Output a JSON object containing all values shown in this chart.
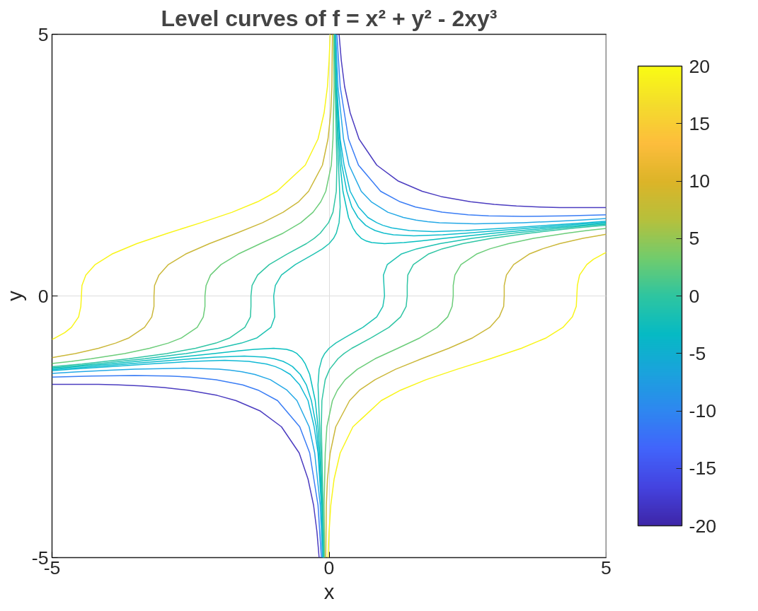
{
  "chart_data": {
    "type": "line",
    "title": "Level curves of f = x² + y² - 2xy³",
    "xlabel": "x",
    "ylabel": "y",
    "xlim": [
      -5,
      5
    ],
    "ylim": [
      -5,
      5
    ],
    "xticks": [
      -5,
      0,
      5
    ],
    "yticks": [
      -5,
      0,
      5
    ],
    "grid": true,
    "marker": "none",
    "line_style": "solid",
    "clim": [
      -20,
      20
    ],
    "cticks": [
      -20,
      -15,
      -10,
      -5,
      0,
      5,
      10,
      15,
      20
    ],
    "series": [
      {
        "color": "#4b3cc0",
        "x": [
          5,
          4.79,
          4.16,
          3.8,
          3.38,
          2.98,
          2.55,
          2.02,
          1.68,
          1.24,
          0.86,
          0.54,
          0.38,
          0.28,
          0.22,
          0.18
        ],
        "values": [
          1.69,
          1.69,
          1.69,
          1.7,
          1.72,
          1.75,
          1.8,
          1.9,
          2,
          2.2,
          2.5,
          3,
          3.5,
          4,
          4.5,
          5
        ]
      },
      {
        "color": "#4b3cc0",
        "x": [
          -5,
          -4.79,
          -4.16,
          -3.8,
          -3.38,
          -2.98,
          -2.55,
          -2.02,
          -1.68,
          -1.24,
          -0.86,
          -0.54,
          -0.38,
          -0.28,
          -0.22,
          -0.18
        ],
        "values": [
          -1.69,
          -1.69,
          -1.69,
          -1.7,
          -1.72,
          -1.75,
          -1.8,
          -1.9,
          -2,
          -2.2,
          -2.5,
          -3,
          -3.5,
          -4,
          -4.5,
          -5
        ]
      },
      {
        "color": "#3a7df5",
        "x": [
          5,
          4.28,
          3.51,
          2.88,
          2.51,
          2.04,
          1.56,
          1.28,
          0.93,
          0.53,
          0.35,
          0.2,
          0.14
        ],
        "values": [
          1.55,
          1.53,
          1.52,
          1.53,
          1.55,
          1.6,
          1.7,
          1.8,
          2,
          2.5,
          3,
          4,
          5
        ]
      },
      {
        "color": "#3a7df5",
        "x": [
          -5,
          -4.28,
          -3.51,
          -2.88,
          -2.51,
          -2.04,
          -1.56,
          -1.28,
          -0.93,
          -0.53,
          -0.35,
          -0.2,
          -0.14
        ],
        "values": [
          -1.55,
          -1.53,
          -1.52,
          -1.53,
          -1.55,
          -1.6,
          -1.7,
          -1.8,
          -2,
          -2.5,
          -3,
          -4,
          -5
        ]
      },
      {
        "color": "#25a9e6",
        "x": [
          5,
          4.53,
          3.95,
          3.5,
          2.63,
          1.99,
          1.78,
          1.57,
          1.34,
          1.06,
          0.76,
          0.58,
          0.36,
          0.26,
          0.16,
          0.12
        ],
        "values": [
          1.48,
          1.45,
          1.42,
          1.4,
          1.38,
          1.4,
          1.42,
          1.45,
          1.5,
          1.6,
          1.8,
          2,
          2.5,
          3,
          4,
          5
        ]
      },
      {
        "color": "#25a9e6",
        "x": [
          -5,
          -4.53,
          -3.95,
          -3.5,
          -2.63,
          -1.99,
          -1.78,
          -1.57,
          -1.34,
          -1.06,
          -0.76,
          -0.58,
          -0.36,
          -0.26,
          -0.16,
          -0.12
        ],
        "values": [
          -1.48,
          -1.45,
          -1.42,
          -1.4,
          -1.38,
          -1.4,
          -1.42,
          -1.45,
          -1.5,
          -1.6,
          -1.8,
          -2,
          -2.5,
          -3,
          -4,
          -5
        ]
      },
      {
        "color": "#12b9d5",
        "x": [
          5,
          4.63,
          3.95,
          3.26,
          2.46,
          1.88,
          1.45,
          1.13,
          0.97,
          0.86,
          0.7,
          0.53,
          0.38,
          0.27,
          0.2,
          0.14,
          0.11
        ],
        "values": [
          1.43,
          1.4,
          1.35,
          1.3,
          1.25,
          1.23,
          1.25,
          1.3,
          1.35,
          1.4,
          1.5,
          1.7,
          2,
          2.5,
          3,
          4,
          5
        ]
      },
      {
        "color": "#12b9d5",
        "x": [
          -5,
          -4.63,
          -3.95,
          -3.26,
          -2.46,
          -1.88,
          -1.45,
          -1.13,
          -0.97,
          -0.86,
          -0.7,
          -0.53,
          -0.38,
          -0.27,
          -0.2,
          -0.14,
          -0.11
        ],
        "values": [
          -1.43,
          -1.4,
          -1.35,
          -1.3,
          -1.25,
          -1.23,
          -1.25,
          -1.3,
          -1.35,
          -1.4,
          -1.5,
          -1.7,
          -2,
          -2.5,
          -3,
          -4,
          -5
        ]
      },
      {
        "color": "#0fbccc",
        "x": [
          5,
          4.26,
          3.66,
          3.07,
          2.47,
          2.05,
          1.53,
          1.16,
          0.99,
          0.83,
          0.74,
          0.66,
          0.52,
          0.41,
          0.32,
          0.23,
          0.19,
          0.13,
          0.1
        ],
        "values": [
          1.41,
          1.35,
          1.3,
          1.25,
          1.2,
          1.17,
          1.15,
          1.17,
          1.2,
          1.25,
          1.3,
          1.35,
          1.5,
          1.7,
          2,
          2.5,
          3,
          4,
          5
        ]
      },
      {
        "color": "#0fbccc",
        "x": [
          -5,
          -4.26,
          -3.66,
          -3.07,
          -2.47,
          -2.05,
          -1.53,
          -1.16,
          -0.99,
          -0.83,
          -0.74,
          -0.66,
          -0.52,
          -0.41,
          -0.32,
          -0.23,
          -0.19,
          -0.13,
          -0.1
        ],
        "values": [
          -1.41,
          -1.35,
          -1.3,
          -1.25,
          -1.2,
          -1.17,
          -1.15,
          -1.17,
          -1.2,
          -1.25,
          -1.3,
          -1.35,
          -1.5,
          -1.7,
          -2,
          -2.5,
          -3,
          -4,
          -5
        ]
      },
      {
        "color": "#08bfc0",
        "x": [
          5,
          3.97,
          2.97,
          2.08,
          1.65,
          1.35,
          1,
          0.77,
          0.67,
          0.58,
          0.49,
          0.43,
          0.35,
          0.25,
          0.2,
          0.17,
          0.13,
          0.1
        ],
        "values": [
          1.39,
          1.3,
          1.2,
          1.1,
          1.05,
          1.02,
          1,
          1.02,
          1.05,
          1.1,
          1.2,
          1.3,
          1.5,
          2,
          2.5,
          3,
          4,
          5
        ]
      },
      {
        "color": "#08bfc0",
        "x": [
          -5,
          -3.97,
          -2.97,
          -2.08,
          -1.65,
          -1.35,
          -1,
          -0.77,
          -0.67,
          -0.58,
          -0.49,
          -0.43,
          -0.35,
          -0.25,
          -0.2,
          -0.17,
          -0.13,
          -0.1
        ],
        "values": [
          -1.39,
          -1.3,
          -1.2,
          -1.1,
          -1.05,
          -1.02,
          -1,
          -1.02,
          -1.05,
          -1.1,
          -1.2,
          -1.3,
          -1.5,
          -2,
          -2.5,
          -3,
          -4,
          -5
        ]
      },
      {
        "color": "#1fc2b2",
        "x": [
          -5,
          -4.75,
          -4.23,
          -3.32,
          -2.58,
          -2,
          -1.58,
          -1.3,
          -1.05,
          -0.98,
          -0.99,
          -1,
          -0.97,
          -0.86,
          -0.61,
          -0.28,
          -0.12,
          0,
          0.08,
          0.13,
          0.18,
          0.2,
          0.19,
          0.17,
          0.15,
          0.12,
          0.1
        ],
        "values": [
          -1.37,
          -1.35,
          -1.3,
          -1.2,
          -1.1,
          -1,
          -0.9,
          -0.8,
          -0.6,
          -0.4,
          -0.2,
          0,
          0.2,
          0.4,
          0.6,
          0.8,
          0.9,
          1,
          1.1,
          1.2,
          1.4,
          1.7,
          2,
          2.5,
          3,
          4,
          5
        ]
      },
      {
        "color": "#1fc2b2",
        "x": [
          5,
          4.75,
          4.23,
          3.32,
          2.58,
          2,
          1.58,
          1.3,
          1.05,
          0.98,
          0.99,
          1,
          0.97,
          0.86,
          0.61,
          0.28,
          0.12,
          0,
          -0.08,
          -0.13,
          -0.18,
          -0.2,
          -0.19,
          -0.17,
          -0.15,
          -0.12,
          -0.1
        ],
        "values": [
          1.37,
          1.35,
          1.3,
          1.2,
          1.1,
          1,
          0.9,
          0.8,
          0.6,
          0.4,
          0.2,
          0,
          -0.2,
          -0.4,
          -0.6,
          -0.8,
          -0.9,
          -1,
          -1.1,
          -1.2,
          -1.4,
          -1.7,
          -2,
          -2.5,
          -3,
          -4,
          -5
        ]
      },
      {
        "color": "#30c5a4",
        "x": [
          -5,
          -4.46,
          -3.61,
          -2.93,
          -2.41,
          -2.04,
          -1.79,
          -1.52,
          -1.42,
          -1.41,
          -1.41,
          -1.39,
          -1.29,
          -1.08,
          -0.76,
          -0.41,
          -0.27,
          -0.16,
          -0.01,
          0.07,
          0.13,
          0.14,
          0.13,
          0.11,
          0.09
        ],
        "values": [
          -1.35,
          -1.3,
          -1.2,
          -1.1,
          -1,
          -0.9,
          -0.8,
          -0.6,
          -0.4,
          -0.2,
          0,
          0.2,
          0.4,
          0.6,
          0.8,
          1,
          1.1,
          1.2,
          1.4,
          1.6,
          2,
          2.5,
          3,
          4,
          5
        ]
      },
      {
        "color": "#30c5a4",
        "x": [
          5,
          4.46,
          3.61,
          2.93,
          2.41,
          2.04,
          1.79,
          1.52,
          1.42,
          1.41,
          1.41,
          1.39,
          1.29,
          1.08,
          0.76,
          0.41,
          0.27,
          0.16,
          0.01,
          -0.07,
          -0.13,
          -0.14,
          -0.13,
          -0.11,
          -0.09
        ],
        "values": [
          1.35,
          1.3,
          1.2,
          1.1,
          1,
          0.9,
          0.8,
          0.6,
          0.4,
          0.2,
          0,
          -0.2,
          -0.4,
          -0.6,
          -0.8,
          -1,
          -1.1,
          -1.2,
          -1.4,
          -1.6,
          -2,
          -2.5,
          -3,
          -4,
          -5
        ]
      },
      {
        "color": "#6ccd7a",
        "x": [
          -5,
          -4.65,
          -4.29,
          -3.69,
          -3.24,
          -2.9,
          -2.66,
          -2.38,
          -2.27,
          -2.24,
          -2.24,
          -2.22,
          -2.14,
          -1.95,
          -1.64,
          -1.24,
          -0.83,
          -0.51,
          -0.29,
          -0.15,
          -0.06,
          0.04,
          0.07,
          0.09,
          0.08
        ],
        "values": [
          -1.29,
          -1.25,
          -1.2,
          -1.1,
          -1,
          -0.9,
          -0.8,
          -0.6,
          -0.4,
          -0.2,
          0,
          0.2,
          0.4,
          0.6,
          0.8,
          1,
          1.2,
          1.4,
          1.6,
          1.8,
          2,
          2.5,
          3,
          4,
          5
        ]
      },
      {
        "color": "#6ccd7a",
        "x": [
          5,
          4.65,
          4.29,
          3.69,
          3.24,
          2.9,
          2.66,
          2.38,
          2.27,
          2.24,
          2.24,
          2.22,
          2.14,
          1.95,
          1.64,
          1.24,
          0.83,
          0.51,
          0.29,
          0.15,
          0.06,
          -0.04,
          -0.07,
          -0.09,
          -0.08
        ],
        "values": [
          1.29,
          1.25,
          1.2,
          1.1,
          1,
          0.9,
          0.8,
          0.6,
          0.4,
          0.2,
          0,
          -0.2,
          -0.4,
          -0.6,
          -0.8,
          -1,
          -1.2,
          -1.4,
          -1.6,
          -1.8,
          -2,
          -2.5,
          -3,
          -4,
          -5
        ]
      },
      {
        "color": "#cbb83a",
        "x": [
          -5,
          -4.84,
          -4.58,
          -4.16,
          -3.85,
          -3.61,
          -3.33,
          -3.2,
          -3.16,
          -3.16,
          -3.15,
          -3.07,
          -2.9,
          -2.59,
          -2.16,
          -1.67,
          -1.2,
          -0.83,
          -0.55,
          -0.37,
          -0.12,
          -0.02,
          0.03,
          0.05,
          0.06
        ],
        "values": [
          -1.18,
          -1.15,
          -1.1,
          -1,
          -0.9,
          -0.8,
          -0.6,
          -0.4,
          -0.2,
          0,
          0.2,
          0.4,
          0.6,
          0.8,
          1,
          1.2,
          1.4,
          1.6,
          1.8,
          2,
          2.5,
          3,
          3.5,
          4,
          5
        ]
      },
      {
        "color": "#cbb83a",
        "x": [
          5,
          4.84,
          4.58,
          4.16,
          3.85,
          3.61,
          3.33,
          3.2,
          3.16,
          3.16,
          3.15,
          3.07,
          2.9,
          2.59,
          2.16,
          1.67,
          1.2,
          0.83,
          0.55,
          0.37,
          0.12,
          0.02,
          -0.03,
          -0.05,
          -0.06
        ],
        "values": [
          1.18,
          1.15,
          1.1,
          1,
          0.9,
          0.8,
          0.6,
          0.4,
          0.2,
          0,
          -0.2,
          -0.4,
          -0.6,
          -0.8,
          -1,
          -1.2,
          -1.4,
          -1.6,
          -1.8,
          -2,
          -2.5,
          -3,
          -3.5,
          -4,
          -5
        ]
      },
      {
        "color": "#f8f51a",
        "x": [
          -5,
          -4.94,
          -4.77,
          -4.65,
          -4.52,
          -4.48,
          -4.47,
          -4.46,
          -4.39,
          -4.22,
          -3.92,
          -3.47,
          -2.91,
          -2.31,
          -1.75,
          -1.29,
          -0.94,
          -0.43,
          -0.2,
          -0.09,
          -0.03,
          0,
          0.02
        ],
        "values": [
          -0.83,
          -0.8,
          -0.7,
          -0.6,
          -0.4,
          -0.2,
          0,
          0.2,
          0.4,
          0.6,
          0.8,
          1,
          1.2,
          1.4,
          1.6,
          1.8,
          2,
          2.5,
          3,
          3.5,
          4,
          4.5,
          5
        ]
      },
      {
        "color": "#f8f51a",
        "x": [
          5,
          4.94,
          4.77,
          4.65,
          4.52,
          4.48,
          4.47,
          4.46,
          4.39,
          4.22,
          3.92,
          3.47,
          2.91,
          2.31,
          1.75,
          1.29,
          0.94,
          0.43,
          0.2,
          0.09,
          0.03,
          0,
          -0.02
        ],
        "values": [
          0.83,
          0.8,
          0.7,
          0.6,
          0.4,
          0.2,
          0,
          -0.2,
          -0.4,
          -0.6,
          -0.8,
          -1,
          -1.2,
          -1.4,
          -1.6,
          -1.8,
          -2,
          -2.5,
          -3,
          -3.5,
          -4,
          -4.5,
          -5
        ]
      }
    ]
  }
}
